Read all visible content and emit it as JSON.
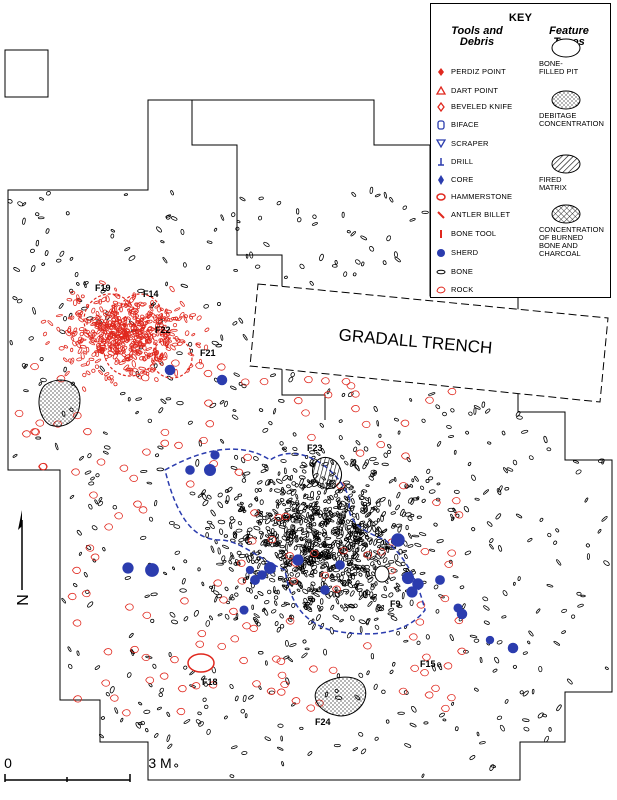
{
  "key": {
    "title": "KEY",
    "tools_heading": "Tools and Debris",
    "features_heading": "Feature Types",
    "tools": [
      "PERDIZ POINT",
      "DART POINT",
      "BEVELED KNIFE",
      "BIFACE",
      "SCRAPER",
      "DRILL",
      "CORE",
      "HAMMERSTONE",
      "ANTLER BILLET",
      "BONE TOOL",
      "SHERD",
      "BONE",
      "ROCK"
    ],
    "features": [
      "BONE-FILLED PIT",
      "DEBITAGE CONCENTRATION",
      "FIRED MATRIX",
      "CONCENTRATION OF BURNED BONE AND CHARCOAL"
    ]
  },
  "map": {
    "trench": "GRADALL TRENCH",
    "labels": [
      "F19",
      "F14",
      "F22",
      "F21",
      "F23",
      "F9",
      "F15",
      "F18",
      "F24"
    ]
  },
  "north": "N",
  "scale": {
    "start": "0",
    "end": "3 M"
  }
}
